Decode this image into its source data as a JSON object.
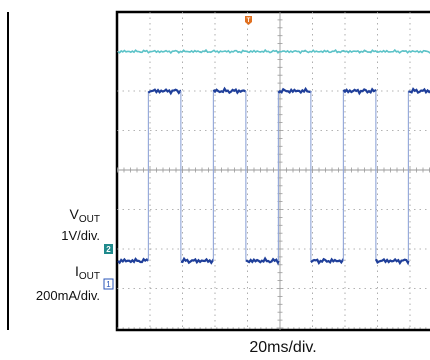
{
  "chart_data": {
    "type": "line",
    "channels": [
      {
        "marker": "2",
        "name": "V",
        "name_sub": "OUT",
        "scale": "1V/div.",
        "color": "#5cc3c8",
        "marker_color": "#1f8a8c"
      },
      {
        "marker": "1",
        "name": "I",
        "name_sub": "OUT",
        "scale": "200mA/div.",
        "color": "#1f3f9a",
        "marker_color": "#2a55b8"
      }
    ],
    "trigger_marker": {
      "label": "T",
      "color": "#e07020"
    },
    "x_scale_label": "20ms/div.",
    "grid": true,
    "grid_divisions": {
      "x": 10,
      "y": 8
    },
    "series": [
      {
        "channel": "2",
        "level_div": 3.0
      },
      {
        "channel": "1",
        "high_level_div": 2.0,
        "low_level_div": -2.3,
        "period_div": 2.0,
        "high_duration_div": 1.0,
        "first_rise_div": -0.05,
        "visible_x_range_div": [
          -0.05,
          4.95
        ]
      }
    ]
  }
}
